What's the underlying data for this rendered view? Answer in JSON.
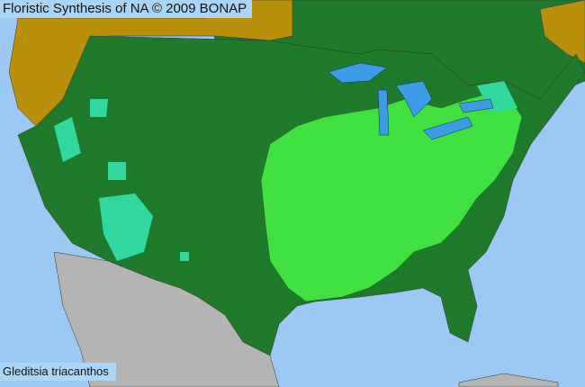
{
  "header": {
    "title": "Floristic Synthesis of NA © 2009 BONAP"
  },
  "species_label": "Gleditsia triacanthos",
  "colors": {
    "ocean": "#9cc8f4",
    "present_native": "#1f7a2c",
    "county_present": "#3fe03f",
    "county_teal": "#30d8a0",
    "not_in_range_region": "#b8900c",
    "mexico": "#b4b4b4",
    "lakes": "#3c9ce8"
  }
}
